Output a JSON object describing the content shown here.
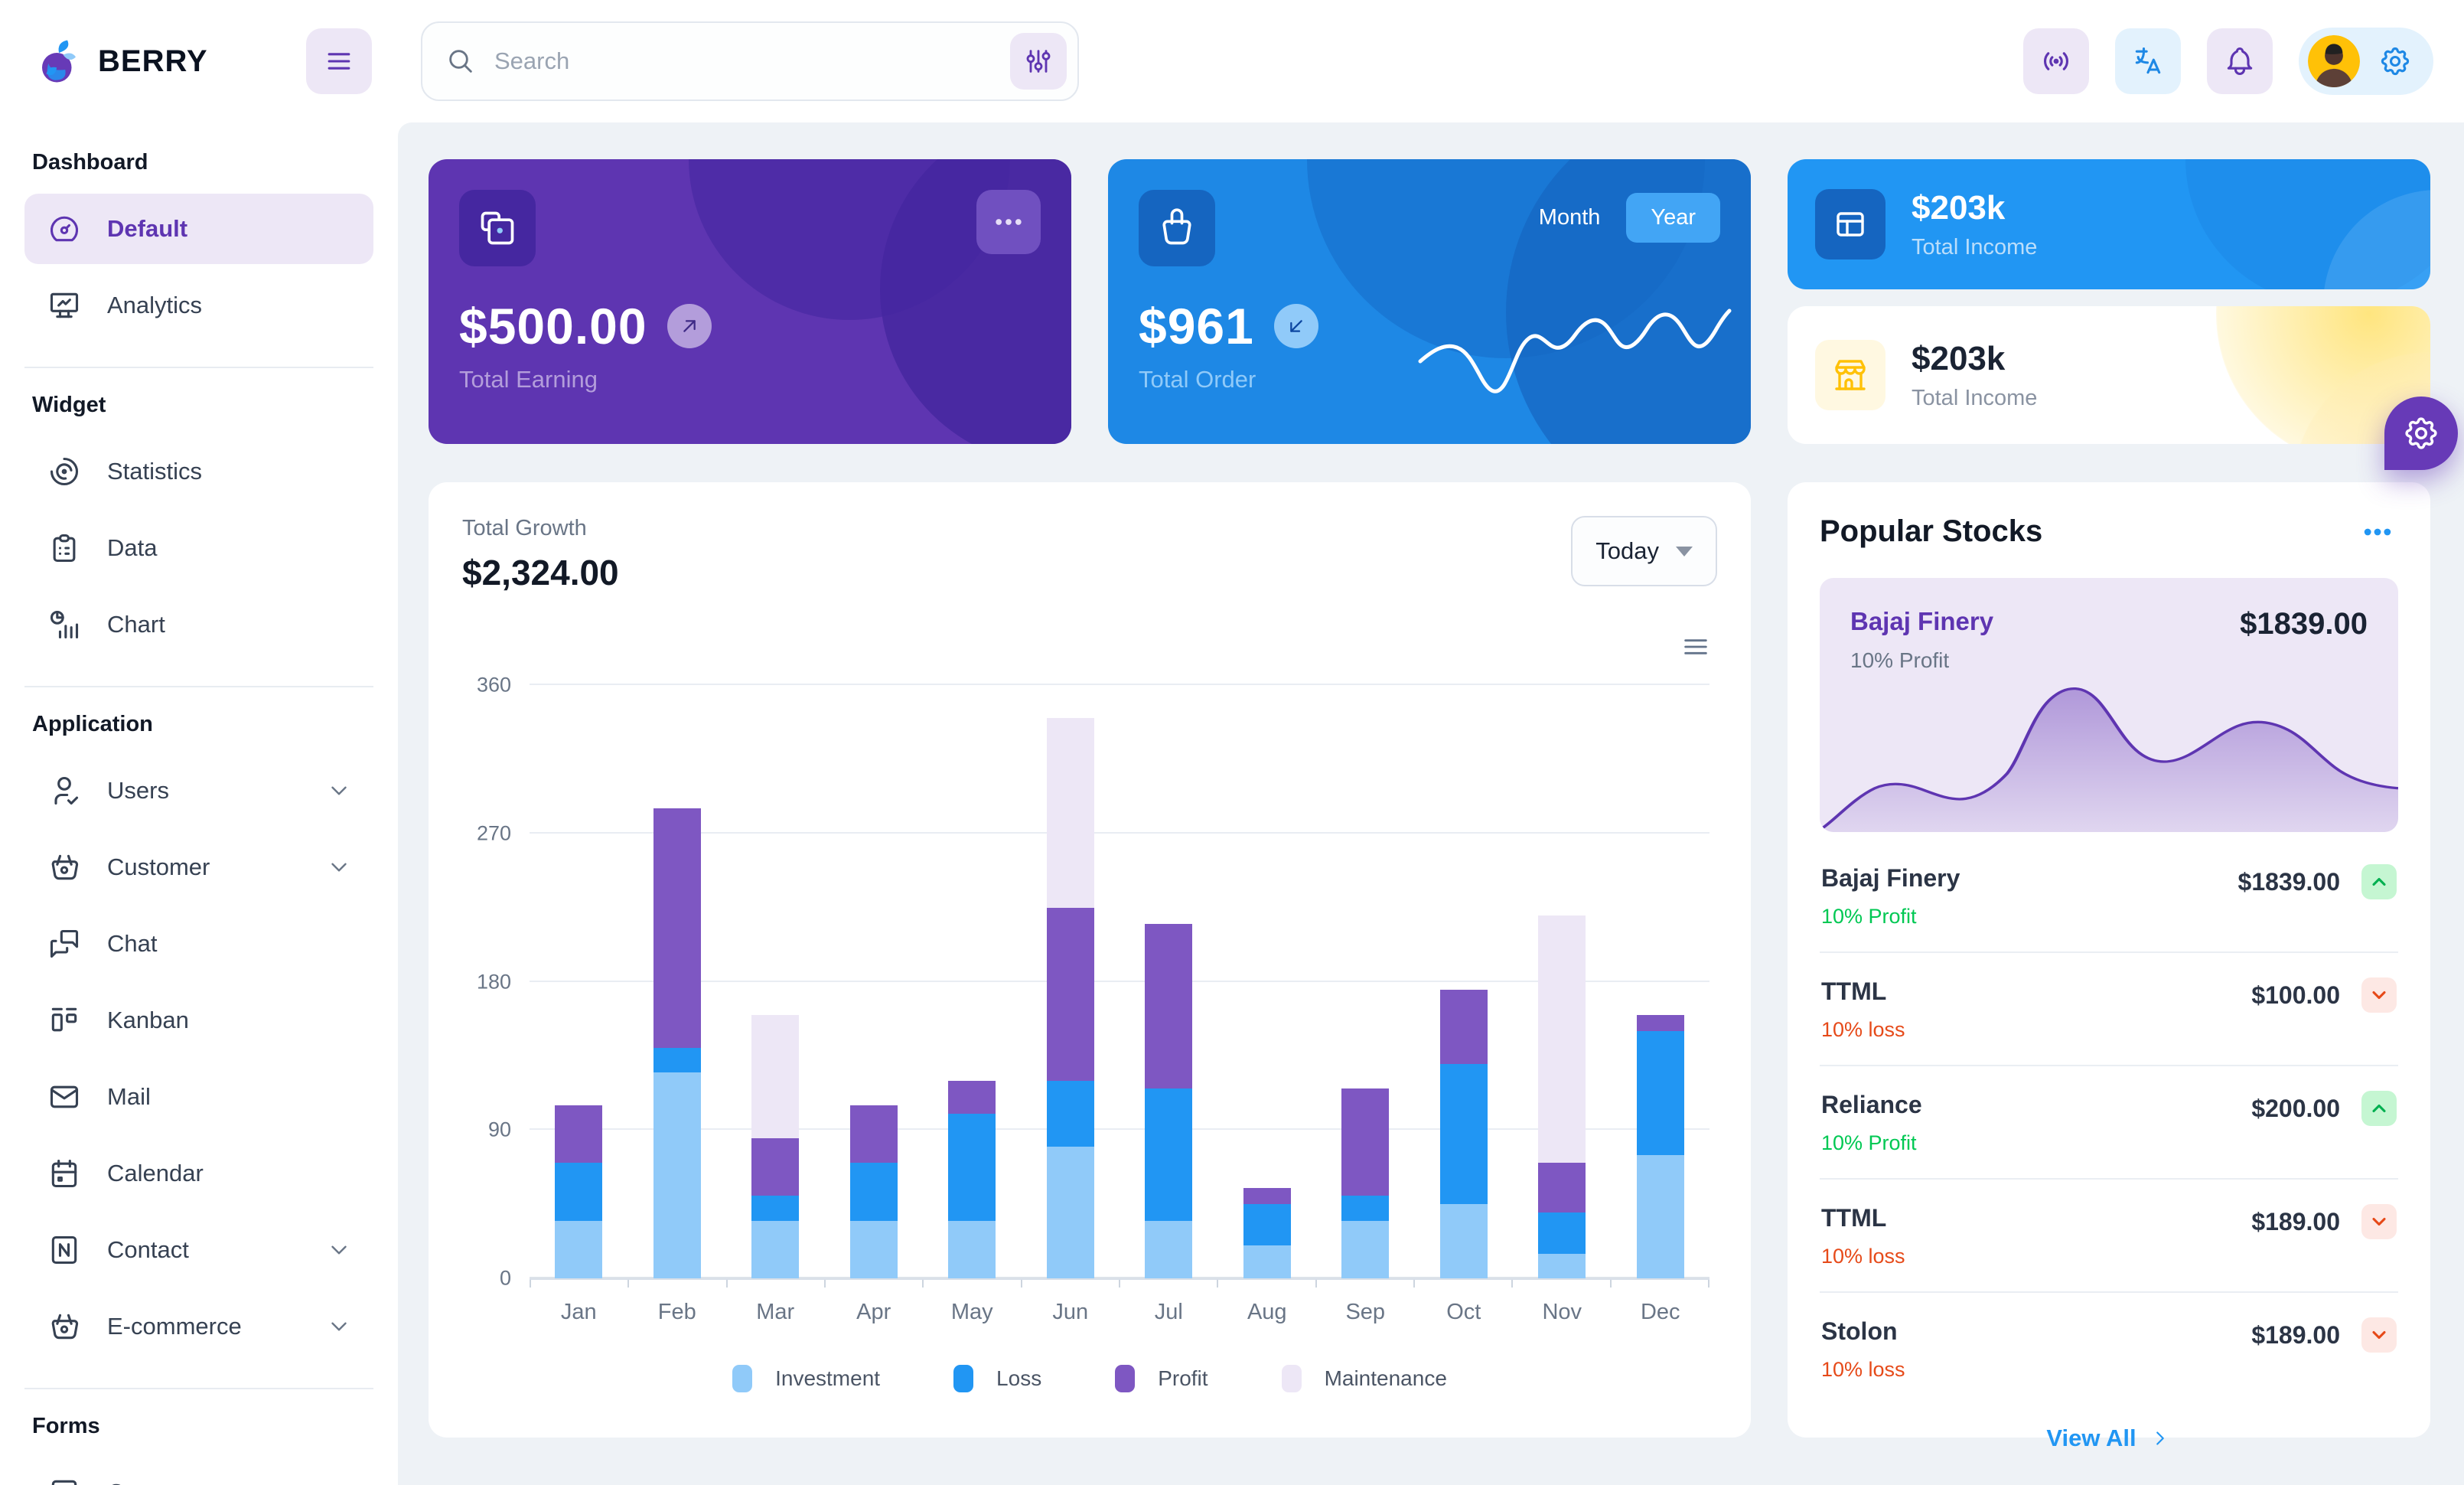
{
  "header": {
    "logo_text": "BERRY",
    "search_placeholder": "Search"
  },
  "sidebar": {
    "sections": [
      {
        "title": "Dashboard",
        "items": [
          {
            "label": "Default",
            "icon": "gauge",
            "active": true
          },
          {
            "label": "Analytics",
            "icon": "analytics"
          }
        ]
      },
      {
        "title": "Widget",
        "items": [
          {
            "label": "Statistics",
            "icon": "chart-arcs"
          },
          {
            "label": "Data",
            "icon": "clipboard"
          },
          {
            "label": "Chart",
            "icon": "chart-infographic"
          }
        ]
      },
      {
        "title": "Application",
        "items": [
          {
            "label": "Users",
            "icon": "user-check",
            "chevron": true
          },
          {
            "label": "Customer",
            "icon": "basket",
            "chevron": true
          },
          {
            "label": "Chat",
            "icon": "messages"
          },
          {
            "label": "Kanban",
            "icon": "kanban"
          },
          {
            "label": "Mail",
            "icon": "mail"
          },
          {
            "label": "Calendar",
            "icon": "calendar"
          },
          {
            "label": "Contact",
            "icon": "contact-card",
            "chevron": true
          },
          {
            "label": "E-commerce",
            "icon": "basket",
            "chevron": true
          }
        ]
      },
      {
        "title": "Forms",
        "items": [
          {
            "label": "Components",
            "icon": "box"
          }
        ]
      }
    ]
  },
  "cards": {
    "earning": {
      "amount": "$500.00",
      "label": "Total Earning"
    },
    "order": {
      "amount": "$961",
      "label": "Total Order",
      "toggle": [
        "Month",
        "Year"
      ],
      "selected": "Year"
    },
    "income_primary": {
      "amount": "$203k",
      "label": "Total Income"
    },
    "income_light": {
      "amount": "$203k",
      "label": "Total Income"
    }
  },
  "growth": {
    "title": "Total Growth",
    "amount": "$2,324.00",
    "period": "Today"
  },
  "chart_data": {
    "type": "bar",
    "stacked": true,
    "title": "Total Growth",
    "categories": [
      "Jan",
      "Feb",
      "Mar",
      "Apr",
      "May",
      "Jun",
      "Jul",
      "Aug",
      "Sep",
      "Oct",
      "Nov",
      "Dec"
    ],
    "series": [
      {
        "name": "Investment",
        "color": "#90caf9",
        "values": [
          35,
          125,
          35,
          35,
          35,
          80,
          35,
          20,
          35,
          45,
          15,
          75
        ]
      },
      {
        "name": "Loss",
        "color": "#2196f3",
        "values": [
          35,
          15,
          15,
          35,
          65,
          40,
          80,
          25,
          15,
          85,
          25,
          75
        ]
      },
      {
        "name": "Profit",
        "color": "#7e57c2",
        "values": [
          35,
          145,
          35,
          35,
          20,
          105,
          100,
          10,
          65,
          45,
          30,
          10
        ]
      },
      {
        "name": "Maintenance",
        "color": "#ede7f6",
        "values": [
          0,
          0,
          75,
          0,
          0,
          115,
          0,
          0,
          0,
          0,
          150,
          0
        ]
      }
    ],
    "ylim": [
      0,
      360
    ],
    "yticks": [
      0,
      90,
      180,
      270,
      360
    ],
    "grid": true,
    "legend_position": "bottom"
  },
  "stocks": {
    "title": "Popular Stocks",
    "featured": {
      "name": "Bajaj Finery",
      "price": "$1839.00",
      "change": "10% Profit"
    },
    "items": [
      {
        "name": "Bajaj Finery",
        "price": "$1839.00",
        "change": "10% Profit",
        "direction": "up"
      },
      {
        "name": "TTML",
        "price": "$100.00",
        "change": "10% loss",
        "direction": "down"
      },
      {
        "name": "Reliance",
        "price": "$200.00",
        "change": "10% Profit",
        "direction": "up"
      },
      {
        "name": "TTML",
        "price": "$189.00",
        "change": "10% loss",
        "direction": "down"
      },
      {
        "name": "Stolon",
        "price": "$189.00",
        "change": "10% loss",
        "direction": "down"
      }
    ],
    "view_all": "View All"
  },
  "colors": {
    "primary": "#2196f3",
    "secondary": "#673ab7",
    "secondary_dark": "#5e35b1",
    "success": "#00c853",
    "error": "#e64a19",
    "warning": "#ffc107",
    "background": "#eef2f6"
  }
}
